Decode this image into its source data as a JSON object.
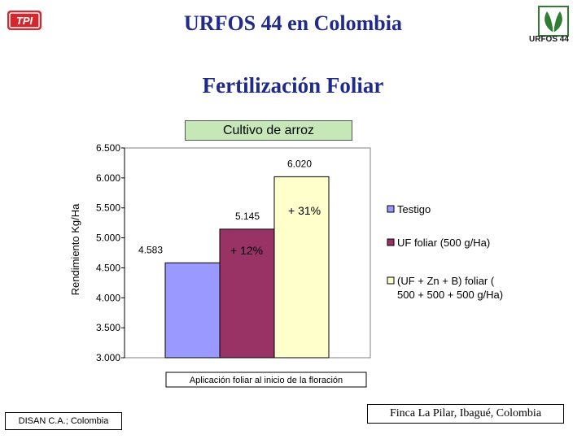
{
  "header": {
    "logo_left_text": "TPI",
    "title": "URFOS 44 en Colombia",
    "logo_right_text": "URFOS 44",
    "subtitle": "Fertilización Foliar"
  },
  "colors": {
    "title": "#1f2a8a",
    "series": [
      "#9999ff",
      "#993366",
      "#ffffcc"
    ],
    "chart_title_bg": "#c6e8b8",
    "logo_red": "#d8262e",
    "logo_green": "#2e7d32"
  },
  "chart_data": {
    "type": "bar",
    "title": "Cultivo de arroz",
    "ylabel": "Rendimiento Kg/Ha",
    "xlabel": "Aplicación foliar al inicio de la floración",
    "ylim": [
      3000,
      6500
    ],
    "yticks": [
      3000,
      3500,
      4000,
      4500,
      5000,
      5500,
      6000,
      6500
    ],
    "ytick_labels": [
      "3.000",
      "3.500",
      "4.000",
      "4.500",
      "5.000",
      "5.500",
      "6.000",
      "6.500"
    ],
    "grid": false,
    "legend_position": "right",
    "series": [
      {
        "name": "Testigo",
        "values": [
          4583
        ],
        "label": "4.583"
      },
      {
        "name": "UF foliar (500 g/Ha)",
        "values": [
          5145
        ],
        "label": "5.145"
      },
      {
        "name": "(UF + Zn + B)  foliar (500 + 500 + 500 g/Ha)",
        "values": [
          6020
        ],
        "label": "6.020"
      }
    ],
    "annotations": [
      "+ 12%",
      "+ 31%"
    ]
  },
  "footer": {
    "left": "DISAN C.A.; Colombia",
    "right": "Finca La Pilar, Ibagué, Colombia"
  }
}
